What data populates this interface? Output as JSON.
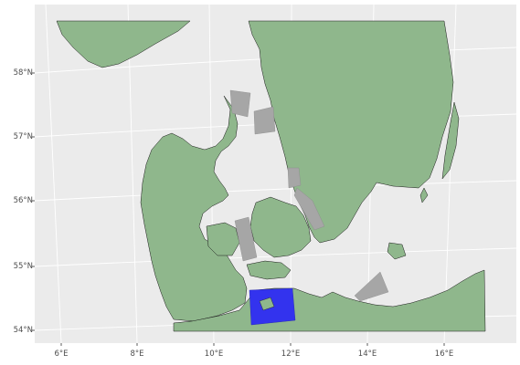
{
  "map": {
    "latitude_labels": [
      "58°N",
      "57°N",
      "56°N",
      "55°N",
      "54°N"
    ],
    "longitude_labels": [
      "6°E",
      "8°E",
      "10°E",
      "12°E",
      "14°E",
      "16°E"
    ],
    "colors": {
      "panel_background": "#ebebeb",
      "graticule": "#ffffff",
      "land_fill": "#8fb78c",
      "land_outline": "#1a1a1a",
      "area_fill": "#a6a6a6",
      "highlight_fill": "#3333ee",
      "axis_text": "#4d4d4d"
    },
    "gray_areas": [
      "skagerrak-area-west",
      "skagerrak-area-east",
      "kattegat-area-north",
      "kattegat-area-south",
      "great-belt-area",
      "arkona-area"
    ],
    "highlighted_area": "kiel-mecklenburg-bay-area"
  }
}
